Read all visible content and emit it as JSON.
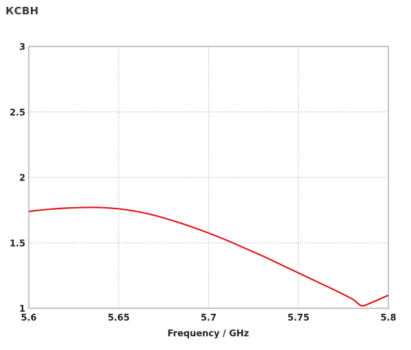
{
  "chart_data": {
    "type": "line",
    "title": "КСВН",
    "xlabel": "Frequency / GHz",
    "ylabel": "",
    "xlim": [
      5.6,
      5.8
    ],
    "ylim": [
      1,
      3
    ],
    "grid": true,
    "x_ticks": [
      "5.6",
      "5.65",
      "5.7",
      "5.75",
      "5.8"
    ],
    "y_ticks": [
      "1",
      "1.5",
      "2",
      "2.5",
      "3"
    ],
    "series": [
      {
        "color": "#e0191e",
        "x": [
          5.6,
          5.61,
          5.62,
          5.63,
          5.64,
          5.65,
          5.66,
          5.67,
          5.68,
          5.69,
          5.7,
          5.71,
          5.72,
          5.73,
          5.74,
          5.75,
          5.76,
          5.77,
          5.78,
          5.785,
          5.79,
          5.8
        ],
        "y": [
          1.74,
          1.755,
          1.765,
          1.77,
          1.77,
          1.76,
          1.74,
          1.71,
          1.67,
          1.625,
          1.575,
          1.52,
          1.46,
          1.4,
          1.335,
          1.27,
          1.205,
          1.14,
          1.07,
          1.02,
          1.04,
          1.1
        ]
      }
    ]
  }
}
